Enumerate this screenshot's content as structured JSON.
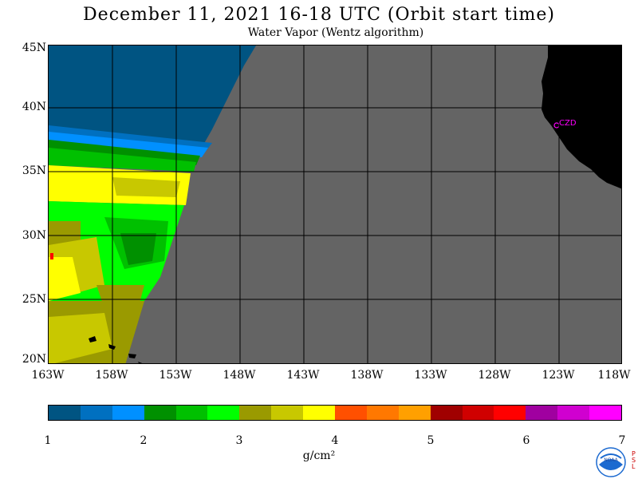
{
  "header": {
    "title": "December 11, 2021  16-18 UTC  (Orbit start time)",
    "subtitle": "Water Vapor (Wentz algorithm)"
  },
  "map": {
    "lat_labels": [
      "45N",
      "40N",
      "35N",
      "30N",
      "25N",
      "20N"
    ],
    "lon_labels": [
      "163W",
      "158W",
      "153W",
      "148W",
      "143W",
      "138W",
      "133W",
      "128W",
      "123W",
      "118W"
    ],
    "station_label": "CZD",
    "colors": {
      "no_data": "#646464",
      "land": "#000000",
      "station": "#ff00ff"
    }
  },
  "legend": {
    "ticks": [
      "1",
      "2",
      "3",
      "4",
      "5",
      "6",
      "7"
    ],
    "units": "g/cm²",
    "colors": [
      "#005482",
      "#0070c0",
      "#0090ff",
      "#009000",
      "#00c000",
      "#00ff00",
      "#9a9a00",
      "#c8c800",
      "#ffff00",
      "#ff5000",
      "#ff7800",
      "#ffa000",
      "#a00000",
      "#d00000",
      "#ff0000",
      "#a000a0",
      "#d000d0",
      "#ff00ff"
    ]
  },
  "logo": {
    "name": "noaa-logo",
    "text": "NOAA",
    "side_letters": "PSL"
  }
}
